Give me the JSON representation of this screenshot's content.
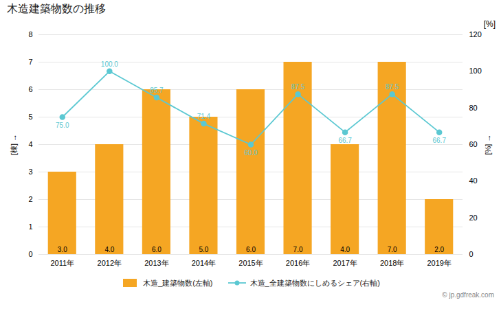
{
  "chart_data": {
    "type": "bar",
    "title": "木造建築物数の推移",
    "categories": [
      "2011年",
      "2012年",
      "2013年",
      "2014年",
      "2015年",
      "2016年",
      "2017年",
      "2018年",
      "2019年"
    ],
    "y_label": "[棟]",
    "y2_label": "[%]",
    "ylim": [
      0,
      8
    ],
    "yticks": [
      0,
      1,
      2,
      3,
      4,
      5,
      6,
      7,
      8
    ],
    "y2lim": [
      0,
      120
    ],
    "y2ticks": [
      0,
      20,
      40,
      60,
      80,
      100,
      120
    ],
    "grid": true,
    "legend": "bottom",
    "data_labels": true,
    "annotations": [
      "[%]",
      "© jp.gdfreak.com"
    ],
    "series": [
      {
        "name": "木造_建築物数(左軸)",
        "type": "bar",
        "color": "#f5a623",
        "values": [
          3.0,
          4.0,
          6.0,
          5.0,
          6.0,
          7.0,
          4.0,
          7.0,
          2.0
        ],
        "value_labels": [
          "3.0",
          "4.0",
          "6.0",
          "5.0",
          "6.0",
          "7.0",
          "4.0",
          "7.0",
          "2.0"
        ]
      },
      {
        "name": "木造_全建築物数にしめるシェア(右軸)",
        "type": "line",
        "axis": "y2",
        "color": "#5bc8d2",
        "marker": "circle",
        "values": [
          75.0,
          100.0,
          85.7,
          71.4,
          60.0,
          87.5,
          66.7,
          87.5,
          66.7
        ],
        "value_labels": [
          "75.0",
          "100.0",
          "85.7",
          "71.4",
          "60.0",
          "87.5",
          "66.7",
          "87.5",
          "66.7"
        ]
      }
    ]
  }
}
